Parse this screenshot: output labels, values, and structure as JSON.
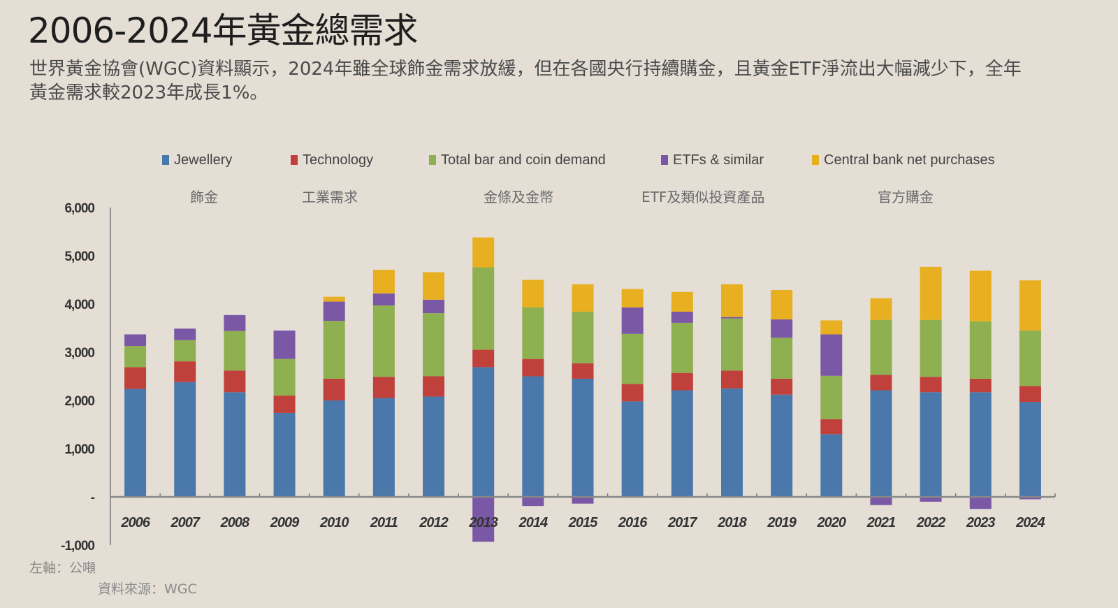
{
  "header": {
    "title": "2006-2024年黃金總需求",
    "subtitle": "世界黃金協會(WGC)資料顯示，2024年雖全球飾金需求放緩，但在各國央行持續購金，且黃金ETF淨流出大幅減少下，全年黃金需求較2023年成長1%。"
  },
  "legend_zh": [
    "飾金",
    "工業需求",
    "金條及金幣",
    "ETF及類似投資產品",
    "官方購金"
  ],
  "footnotes": {
    "unit": "左軸：公噸",
    "source": "資料來源：WGC"
  },
  "chart_data": {
    "type": "bar",
    "stacked": true,
    "title": "",
    "xlabel": "",
    "ylabel": "",
    "ylim": [
      -1000,
      6000
    ],
    "yticks": [
      -1000,
      0,
      1000,
      2000,
      3000,
      4000,
      5000,
      6000
    ],
    "ytick_labels": [
      "-1,000",
      "-",
      "1,000",
      "2,000",
      "3,000",
      "4,000",
      "5,000",
      "6,000"
    ],
    "grid": false,
    "legend_position": "top",
    "categories": [
      "2006",
      "2007",
      "2008",
      "2009",
      "2010",
      "2011",
      "2012",
      "2013",
      "2014",
      "2015",
      "2016",
      "2017",
      "2018",
      "2019",
      "2020",
      "2021",
      "2022",
      "2023",
      "2024"
    ],
    "series": [
      {
        "name": "Jewellery",
        "color": "#4a78ab",
        "values": [
          2240,
          2380,
          2170,
          1740,
          2000,
          2050,
          2080,
          2690,
          2500,
          2450,
          1980,
          2210,
          2250,
          2120,
          1300,
          2210,
          2170,
          2170,
          1970
        ]
      },
      {
        "name": "Technology",
        "color": "#c0403c",
        "values": [
          450,
          430,
          450,
          360,
          450,
          440,
          420,
          360,
          360,
          320,
          360,
          360,
          370,
          330,
          310,
          320,
          320,
          280,
          330
        ]
      },
      {
        "name": "Total bar and coin demand",
        "color": "#8fb050",
        "values": [
          440,
          440,
          820,
          760,
          1200,
          1480,
          1310,
          1710,
          1070,
          1070,
          1040,
          1040,
          1080,
          850,
          900,
          1140,
          1180,
          1190,
          1150
        ]
      },
      {
        "name": "ETFs & similar",
        "color": "#7a58a6",
        "values": [
          240,
          240,
          330,
          590,
          400,
          250,
          280,
          -930,
          -190,
          -140,
          550,
          230,
          30,
          380,
          860,
          -170,
          -100,
          -250,
          -50
        ]
      },
      {
        "name": "Central bank net purchases",
        "color": "#e8b020",
        "values": [
          0,
          0,
          0,
          0,
          100,
          490,
          570,
          620,
          570,
          570,
          380,
          410,
          680,
          610,
          290,
          450,
          1100,
          1050,
          1040
        ]
      }
    ]
  }
}
